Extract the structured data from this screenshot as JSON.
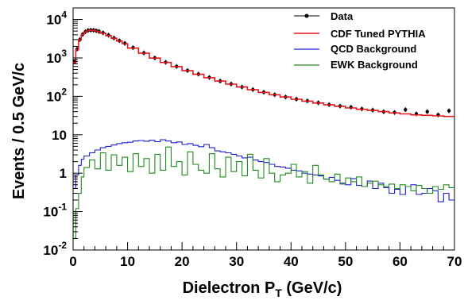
{
  "chart_data": {
    "type": "line",
    "xlabel": "Dielectron P",
    "xlabel_subscript": "T",
    "xlabel_unit": " (GeV/c)",
    "ylabel": "Events / 0.5 GeV/c",
    "xlim": [
      0,
      70
    ],
    "ylim": [
      0.01,
      20000
    ],
    "yscale": "log",
    "grid": false,
    "legend_position": "top-right",
    "x_ticks": [
      0,
      10,
      20,
      30,
      40,
      50,
      60,
      70
    ],
    "y_ticks": [
      {
        "value": 0.01,
        "base": "10",
        "exp": "-2"
      },
      {
        "value": 0.1,
        "base": "10",
        "exp": "-1"
      },
      {
        "value": 1,
        "base": "1",
        "exp": ""
      },
      {
        "value": 10,
        "base": "10",
        "exp": ""
      },
      {
        "value": 100,
        "base": "10",
        "exp": "2"
      },
      {
        "value": 1000,
        "base": "10",
        "exp": "3"
      },
      {
        "value": 10000,
        "base": "10",
        "exp": "4"
      }
    ],
    "series": [
      {
        "name": "Data",
        "style": "points",
        "color": "#000000",
        "x": [
          0.25,
          0.75,
          1.25,
          1.75,
          2.25,
          2.75,
          3.25,
          3.75,
          4.25,
          4.75,
          5.5,
          6.5,
          7.5,
          8.5,
          9.5,
          11,
          13,
          15,
          17,
          19,
          21,
          23,
          25,
          27,
          29,
          31,
          33,
          35,
          37,
          39,
          41,
          43,
          45,
          47,
          49,
          51,
          53,
          55,
          57,
          59,
          61,
          63,
          65,
          67,
          69
        ],
        "y": [
          800,
          1700,
          3000,
          4100,
          4800,
          5200,
          5300,
          5250,
          5100,
          4900,
          4500,
          3900,
          3300,
          2800,
          2400,
          1850,
          1350,
          1000,
          770,
          600,
          470,
          380,
          310,
          250,
          210,
          175,
          150,
          128,
          110,
          96,
          85,
          76,
          68,
          61,
          56,
          52,
          47,
          44,
          40,
          38,
          45,
          35,
          40,
          33,
          42
        ]
      },
      {
        "name": "CDF Tuned PYTHIA",
        "style": "step",
        "color": "#e8141b",
        "x": [
          0,
          0.5,
          1,
          1.5,
          2,
          2.5,
          3,
          3.5,
          4,
          4.5,
          5,
          6,
          7,
          8,
          9,
          10,
          12,
          14,
          16,
          18,
          20,
          22,
          24,
          26,
          28,
          30,
          32,
          34,
          36,
          38,
          40,
          42,
          44,
          46,
          48,
          50,
          52,
          54,
          56,
          58,
          60,
          62,
          64,
          66,
          68
        ],
        "y": [
          750,
          1650,
          2950,
          4050,
          4750,
          5150,
          5250,
          5200,
          5050,
          4850,
          4400,
          3800,
          3250,
          2750,
          2350,
          1800,
          1320,
          990,
          760,
          595,
          465,
          375,
          305,
          250,
          208,
          175,
          148,
          127,
          110,
          96,
          84,
          75,
          67,
          60,
          55,
          50,
          46,
          43,
          40,
          37,
          35,
          33,
          32,
          31,
          30
        ]
      },
      {
        "name": "QCD Background",
        "style": "step",
        "color": "#1f1fd6",
        "x": [
          0,
          0.5,
          1,
          1.5,
          2,
          3,
          4,
          5,
          6,
          7,
          8,
          9,
          10,
          11,
          12,
          13,
          14,
          15,
          16,
          17,
          18,
          19,
          20,
          21,
          22,
          23,
          24,
          25,
          26,
          27,
          28,
          29,
          30,
          31,
          32,
          33,
          34,
          35,
          36,
          37,
          38,
          39,
          40,
          41,
          42,
          43,
          44,
          45,
          46,
          47,
          48,
          49,
          50,
          51,
          52,
          53,
          54,
          55,
          56,
          57,
          58,
          59,
          60,
          61,
          62,
          63,
          64,
          65,
          66,
          67,
          68,
          69
        ],
        "y": [
          0.4,
          0.9,
          1.6,
          2.3,
          2.8,
          3.4,
          4.0,
          4.6,
          5.0,
          5.4,
          5.9,
          6.2,
          6.4,
          6.9,
          7.1,
          6.8,
          7.2,
          6.6,
          7.4,
          6.9,
          6.2,
          6.5,
          5.6,
          5.9,
          5.3,
          4.9,
          5.6,
          4.6,
          3.8,
          3.6,
          3.4,
          3.1,
          2.8,
          2.5,
          2.6,
          2.2,
          2.0,
          1.9,
          1.7,
          1.5,
          1.45,
          1.35,
          1.2,
          1.15,
          1.0,
          0.95,
          0.9,
          0.85,
          0.7,
          0.78,
          0.65,
          0.55,
          0.5,
          0.72,
          0.48,
          0.45,
          0.62,
          0.4,
          0.55,
          0.42,
          0.3,
          0.38,
          0.28,
          0.45,
          0.5,
          0.28,
          0.3,
          0.4,
          0.35,
          0.18,
          0.3,
          0.2
        ]
      },
      {
        "name": "EWK Background",
        "style": "step",
        "color": "#1f8a1f",
        "x": [
          0,
          0.5,
          1,
          1.5,
          2,
          3,
          4,
          5,
          6,
          7,
          8,
          9,
          10,
          11,
          12,
          13,
          14,
          15,
          16,
          17,
          18,
          19,
          20,
          21,
          22,
          23,
          24,
          25,
          26,
          27,
          28,
          29,
          30,
          31,
          32,
          33,
          34,
          35,
          36,
          37,
          38,
          39,
          40,
          41,
          42,
          43,
          44,
          45,
          46,
          47,
          48,
          49,
          50,
          51,
          52,
          53,
          54,
          55,
          56,
          57,
          58,
          59,
          60,
          61,
          62,
          63,
          64,
          65,
          66,
          67,
          68,
          69
        ],
        "y": [
          0.02,
          0.12,
          0.3,
          0.8,
          1.4,
          2.2,
          1.3,
          3.4,
          1.2,
          3.0,
          1.6,
          2.6,
          1.1,
          3.2,
          1.5,
          2.4,
          1.0,
          3.1,
          1.2,
          4.8,
          1.5,
          2.0,
          0.9,
          3.6,
          1.7,
          1.2,
          1.0,
          3.2,
          1.3,
          0.8,
          2.6,
          1.1,
          2.0,
          0.85,
          3.1,
          1.2,
          0.75,
          2.4,
          1.0,
          0.6,
          0.9,
          1.0,
          1.7,
          0.8,
          1.1,
          0.55,
          1.6,
          0.9,
          0.7,
          0.6,
          0.95,
          0.52,
          0.75,
          0.6,
          0.8,
          0.45,
          0.55,
          0.62,
          0.5,
          0.45,
          0.52,
          0.4,
          0.5,
          0.45,
          0.35,
          0.48,
          0.4,
          0.3,
          0.45,
          0.38,
          0.5,
          0.42
        ]
      }
    ]
  }
}
